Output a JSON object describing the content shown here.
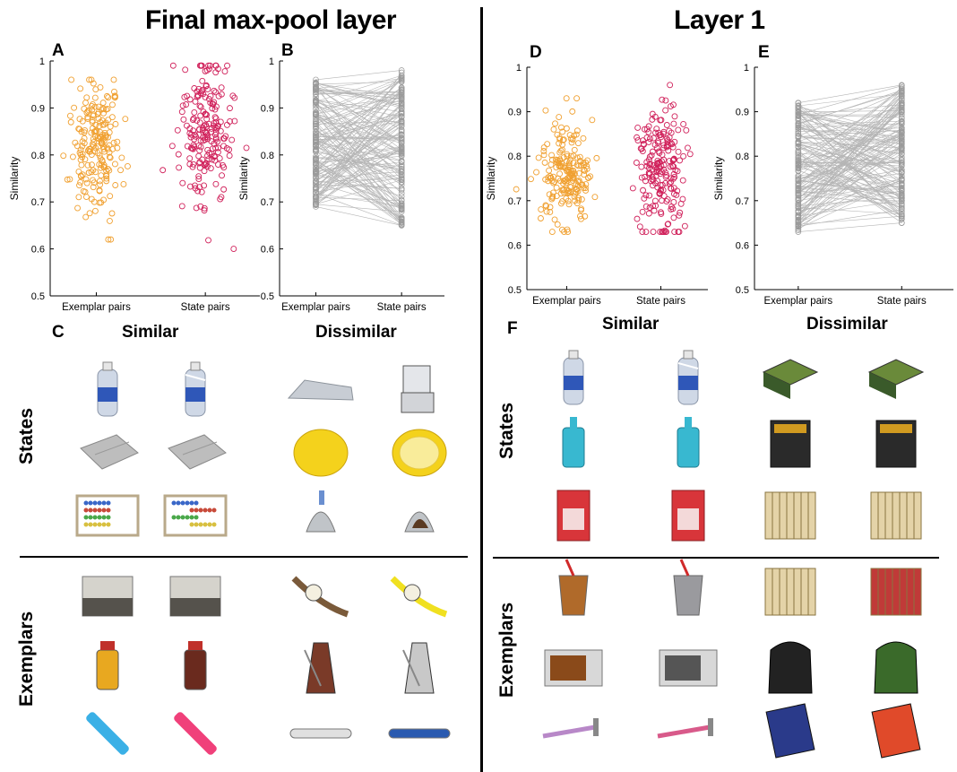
{
  "left": {
    "title": "Final max-pool layer",
    "panel_labels": {
      "a": "A",
      "b": "B",
      "c": "C"
    },
    "image_section": {
      "similar": "Similar",
      "dissimilar": "Dissimilar",
      "states": "States",
      "exemplars": "Exemplars"
    }
  },
  "right": {
    "title": "Layer 1",
    "panel_labels": {
      "d": "D",
      "e": "E",
      "f": "F"
    },
    "image_section": {
      "similar": "Similar",
      "dissimilar": "Dissimilar",
      "states": "States",
      "exemplars": "Exemplars"
    }
  },
  "colors": {
    "exemplar": "#f0a030",
    "state": "#d0205a",
    "paired": "#9a9a9a",
    "axis": "#000000"
  },
  "chart_data": [
    {
      "id": "A",
      "type": "scatter",
      "xlabel": "",
      "ylabel": "Similarity",
      "categories": [
        "Exemplar pairs",
        "State pairs"
      ],
      "ylim": [
        0.5,
        1
      ],
      "yticks": [
        "0.5",
        "0.6",
        "0.7",
        "0.8",
        "0.9",
        "1"
      ],
      "series": [
        {
          "category": "Exemplar pairs",
          "n": 200,
          "mean": 0.82,
          "sd": 0.07,
          "min": 0.62,
          "max": 0.96
        },
        {
          "category": "State pairs",
          "n": 200,
          "mean": 0.85,
          "sd": 0.08,
          "min": 0.6,
          "max": 0.99
        }
      ]
    },
    {
      "id": "B",
      "type": "line",
      "xlabel": "",
      "ylabel": "Similarity",
      "categories": [
        "Exemplar pairs",
        "State pairs"
      ],
      "ylim": [
        0.5,
        1
      ],
      "yticks": [
        "0.5",
        "0.6",
        "0.7",
        "0.8",
        "0.9",
        "1"
      ],
      "paired": {
        "n": 150,
        "left_min": 0.69,
        "left_max": 0.96,
        "right_min": 0.65,
        "right_max": 0.98
      }
    },
    {
      "id": "D",
      "type": "scatter",
      "xlabel": "",
      "ylabel": "Similarity",
      "categories": [
        "Exemplar pairs",
        "State pairs"
      ],
      "ylim": [
        0.5,
        1
      ],
      "yticks": [
        "0.5",
        "0.6",
        "0.7",
        "0.8",
        "0.9",
        "1"
      ],
      "series": [
        {
          "category": "Exemplar pairs",
          "n": 200,
          "mean": 0.76,
          "sd": 0.06,
          "min": 0.63,
          "max": 0.93
        },
        {
          "category": "State pairs",
          "n": 200,
          "mean": 0.76,
          "sd": 0.07,
          "min": 0.63,
          "max": 0.96
        }
      ]
    },
    {
      "id": "E",
      "type": "line",
      "xlabel": "",
      "ylabel": "Similarity",
      "categories": [
        "Exemplar pairs",
        "State pairs"
      ],
      "ylim": [
        0.5,
        1
      ],
      "yticks": [
        "0.5",
        "0.6",
        "0.7",
        "0.8",
        "0.9",
        "1"
      ],
      "paired": {
        "n": 150,
        "left_min": 0.63,
        "left_max": 0.92,
        "right_min": 0.65,
        "right_max": 0.96
      }
    }
  ],
  "images": {
    "left_states": [
      "water-bottle",
      "water-bottle-crushed",
      "folded-tray",
      "folded-tray-bent",
      "abacus",
      "abacus-shifted",
      "ironing-board",
      "scanner-open",
      "lemon",
      "lemon-half",
      "chocolate-kiss",
      "chocolate-kiss-unwrapped"
    ],
    "left_exemplars": [
      "copier",
      "copier-2",
      "juice-bottle-orange",
      "juice-bottle-dark",
      "highlighter-blue",
      "highlighter-pink",
      "wristwatch-brown",
      "wristwatch-yellow",
      "metronome",
      "metronome-open",
      "can-opener",
      "can-opener-blue"
    ],
    "right_states": [
      "water-bottle",
      "water-bottle-crushed",
      "glass-bottle-blue",
      "glass-bottle-blue-open",
      "card-box",
      "card-box-open",
      "book-closed",
      "book-open",
      "battery-pack",
      "battery-pack-open",
      "accordion",
      "accordion-open"
    ],
    "right_exemplars": [
      "bubble-tea-orange",
      "bubble-tea-grey",
      "microwave",
      "microwave-2",
      "razor-purple",
      "razor-pink",
      "accordion-gold",
      "accordion-red",
      "backpack-black",
      "backpack-green",
      "scratch-card",
      "scratch-card-2"
    ]
  }
}
